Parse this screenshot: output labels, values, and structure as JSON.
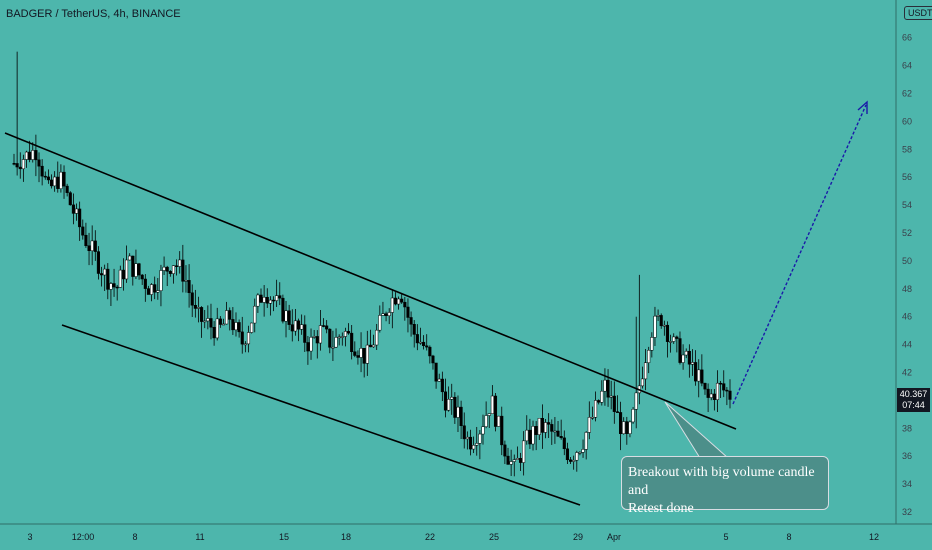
{
  "header": {
    "symbol_title": "BADGER / TetherUS, 4h, BINANCE",
    "currency_badge": "USDT"
  },
  "price_tag": {
    "price": "40.367",
    "countdown": "07:44"
  },
  "annotation": {
    "text_line1": "Breakout with big volume candle and",
    "text_line2": "Retest done"
  },
  "colors": {
    "background": "#4db6ac",
    "candle": "#ffffff",
    "candle_outline": "#000000",
    "trendline": "#000000",
    "projection_arrow": "#1a1aa8"
  },
  "chart_data": {
    "type": "candlestick",
    "title": "BADGER / TetherUS, 4h, BINANCE",
    "y_ticks": [
      32,
      34,
      36,
      38,
      40,
      42,
      44,
      46,
      48,
      50,
      52,
      54,
      56,
      58,
      60,
      62,
      64,
      66
    ],
    "ylim": [
      31,
      68
    ],
    "x_ticks": [
      "3",
      "12:00",
      "8",
      "11",
      "15",
      "18",
      "22",
      "25",
      "29",
      "Apr",
      "5",
      "8",
      "12"
    ],
    "grid": false,
    "last_price": 40.367,
    "price_path": [
      [
        0,
        57
      ],
      [
        2,
        58
      ],
      [
        3,
        55
      ],
      [
        4,
        56
      ],
      [
        6,
        52
      ],
      [
        8,
        49
      ],
      [
        9,
        48
      ],
      [
        10,
        50
      ],
      [
        12,
        48
      ],
      [
        14,
        50
      ],
      [
        15,
        49
      ],
      [
        16,
        46
      ],
      [
        18,
        45
      ],
      [
        19,
        46
      ],
      [
        20,
        44
      ],
      [
        21,
        46
      ],
      [
        22,
        48
      ],
      [
        23,
        47
      ],
      [
        24,
        46
      ],
      [
        25,
        45
      ],
      [
        26,
        44
      ],
      [
        27,
        45
      ],
      [
        28,
        44
      ],
      [
        29,
        45
      ],
      [
        30,
        44
      ],
      [
        31,
        43
      ],
      [
        32,
        45
      ],
      [
        33,
        47
      ],
      [
        34,
        48
      ],
      [
        35,
        45
      ],
      [
        36,
        44
      ],
      [
        37,
        42
      ],
      [
        38,
        40
      ],
      [
        39,
        39
      ],
      [
        40,
        37
      ],
      [
        41,
        38
      ],
      [
        42,
        40
      ],
      [
        43,
        37
      ],
      [
        44,
        35
      ],
      [
        45,
        37
      ],
      [
        46,
        38
      ],
      [
        47,
        38
      ],
      [
        48,
        37
      ],
      [
        49,
        36
      ],
      [
        50,
        37
      ],
      [
        51,
        39
      ],
      [
        52,
        41
      ],
      [
        53,
        39
      ],
      [
        54,
        37
      ],
      [
        55,
        41
      ],
      [
        56,
        45
      ],
      [
        57,
        46
      ],
      [
        58,
        44
      ],
      [
        59,
        43
      ],
      [
        60,
        42
      ],
      [
        61,
        40
      ],
      [
        62,
        41
      ],
      [
        63,
        40.4
      ]
    ],
    "trendlines": [
      {
        "name": "upper-channel",
        "from": [
          "Mar 2",
          59
        ],
        "to": [
          "Apr 5",
          38
        ]
      },
      {
        "name": "lower-channel",
        "from": [
          "Mar 4 12:00",
          45
        ],
        "to": [
          "Mar 29",
          32.5
        ]
      }
    ],
    "projection": {
      "from": 40,
      "to": 61
    }
  }
}
